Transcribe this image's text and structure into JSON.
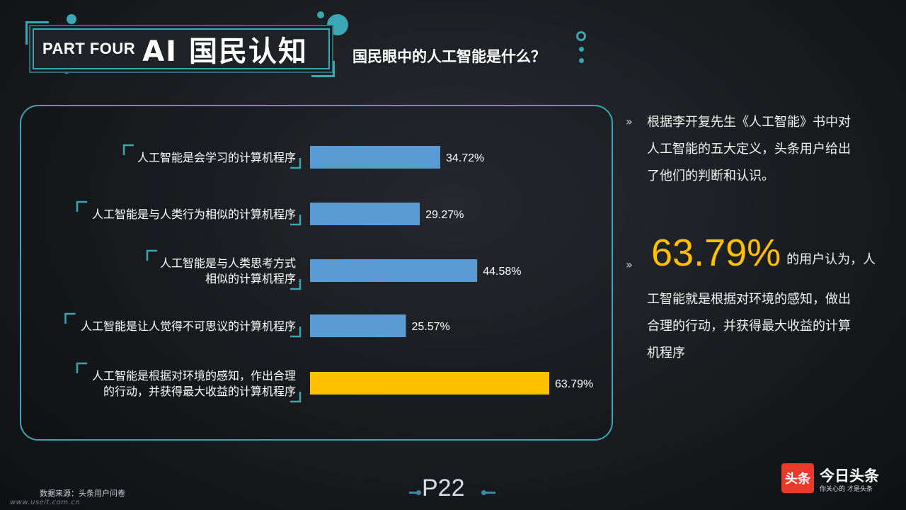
{
  "header": {
    "part_label": "PART FOUR",
    "title": "AI 国民认知",
    "subtitle": "国民眼中的人工智能是什么？"
  },
  "colors": {
    "accent": "#3aa7b4",
    "bar_default": "#5b9bd5",
    "bar_highlight": "#ffc000",
    "background": "#1e2024"
  },
  "chart_data": {
    "type": "bar",
    "orientation": "horizontal",
    "categories": [
      [
        "人工智能是会学习的计算机程序"
      ],
      [
        "人工智能是与人类行为相似的计算机程序"
      ],
      [
        "人工智能是与人类思考方式",
        "相似的计算机程序"
      ],
      [
        "人工智能是让人觉得不可思议的计算机程序"
      ],
      [
        "人工智能是根据对环境的感知，作出合理",
        "的行动，并获得最大收益的计算机程序"
      ]
    ],
    "values": [
      34.72,
      29.27,
      44.58,
      25.57,
      63.79
    ],
    "value_labels": [
      "34.72%",
      "29.27%",
      "44.58%",
      "25.57%",
      "63.79%"
    ],
    "highlight_index": 4,
    "xlim": [
      0,
      70
    ],
    "grid": false,
    "legend": "none"
  },
  "right_panel": {
    "bullet_symbol": "»",
    "para1_lines": [
      "根据李开复先生《人工智能》书中对",
      "人工智能的五大定义，头条用户给出",
      "了他们的判断和认识。"
    ],
    "highlight_value": "63.79%",
    "para2_first": "的用户认为，人",
    "para2_lines": [
      "工智能就是根据对环境的感知，做出",
      "合理的行动，并获得最大收益的计算",
      "机程序"
    ]
  },
  "footer": {
    "source": "数据来源：头条用户问卷",
    "url": "www.useit.com.cn",
    "page_number": "P22"
  },
  "logo": {
    "badge": "头条",
    "name": "今日头条",
    "slogan": "你关心的 才是头条"
  }
}
